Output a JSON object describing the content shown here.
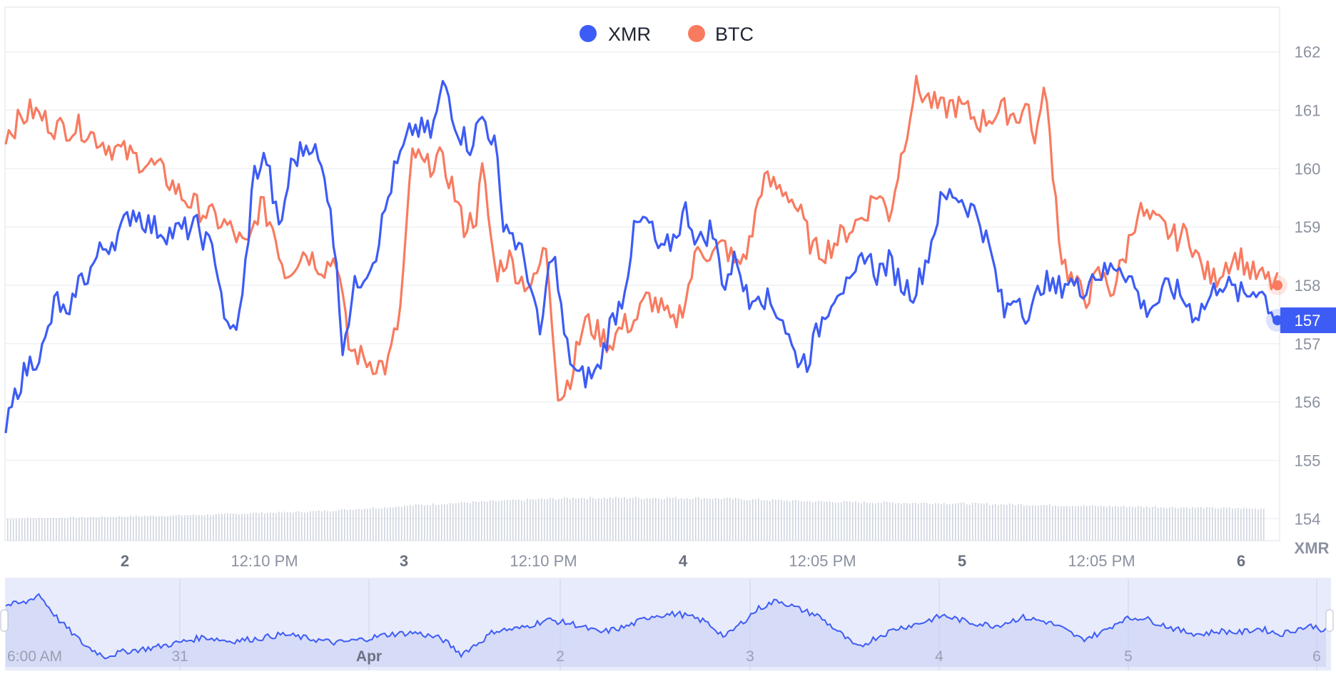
{
  "chart_data": {
    "type": "line",
    "legend": {
      "placement": "top-center"
    },
    "series": [
      {
        "name": "XMR",
        "color": "#3d5cf5"
      },
      {
        "name": "BTC",
        "color": "#f87b60"
      }
    ],
    "y_axis": {
      "side": "right",
      "range": [
        153.6,
        162.4
      ],
      "ticks": [
        "162",
        "161",
        "160",
        "159",
        "158",
        "157",
        "156",
        "155",
        "154"
      ],
      "unit_label": "XMR",
      "current_value": {
        "label": "157",
        "value": 157.4,
        "color": "#3d5cf5"
      },
      "btc_last_value": 158.0
    },
    "x_axis": {
      "ticks": [
        {
          "label": "2",
          "bold": true
        },
        {
          "label": "12:10 PM",
          "bold": false
        },
        {
          "label": "3",
          "bold": true
        },
        {
          "label": "12:10 PM",
          "bold": false
        },
        {
          "label": "4",
          "bold": true
        },
        {
          "label": "12:05 PM",
          "bold": false
        },
        {
          "label": "5",
          "bold": true
        },
        {
          "label": "12:05 PM",
          "bold": false
        },
        {
          "label": "6",
          "bold": true
        }
      ]
    },
    "xmr_anchors": [
      [
        0,
        155.5
      ],
      [
        0.01,
        156.3
      ],
      [
        0.02,
        156.7
      ],
      [
        0.03,
        156.9
      ],
      [
        0.04,
        157.8
      ],
      [
        0.05,
        157.3
      ],
      [
        0.055,
        158.0
      ],
      [
        0.065,
        158.2
      ],
      [
        0.075,
        158.6
      ],
      [
        0.09,
        158.9
      ],
      [
        0.1,
        159.3
      ],
      [
        0.115,
        159.0
      ],
      [
        0.13,
        158.9
      ],
      [
        0.15,
        159.0
      ],
      [
        0.165,
        158.5
      ],
      [
        0.175,
        157.1
      ],
      [
        0.185,
        157.5
      ],
      [
        0.195,
        159.9
      ],
      [
        0.205,
        160.2
      ],
      [
        0.215,
        158.9
      ],
      [
        0.225,
        160.1
      ],
      [
        0.24,
        160.5
      ],
      [
        0.255,
        159.5
      ],
      [
        0.265,
        157.0
      ],
      [
        0.275,
        158.0
      ],
      [
        0.29,
        158.5
      ],
      [
        0.305,
        159.9
      ],
      [
        0.32,
        160.7
      ],
      [
        0.335,
        160.6
      ],
      [
        0.345,
        161.5
      ],
      [
        0.355,
        160.7
      ],
      [
        0.365,
        160.4
      ],
      [
        0.375,
        160.9
      ],
      [
        0.385,
        160.4
      ],
      [
        0.39,
        159.2
      ],
      [
        0.4,
        158.8
      ],
      [
        0.41,
        158.3
      ],
      [
        0.42,
        157.1
      ],
      [
        0.43,
        158.7
      ],
      [
        0.44,
        157.0
      ],
      [
        0.45,
        156.4
      ],
      [
        0.465,
        156.5
      ],
      [
        0.475,
        157.3
      ],
      [
        0.485,
        157.8
      ],
      [
        0.495,
        159.0
      ],
      [
        0.505,
        159.1
      ],
      [
        0.515,
        158.5
      ],
      [
        0.525,
        158.8
      ],
      [
        0.535,
        159.3
      ],
      [
        0.545,
        158.7
      ],
      [
        0.555,
        159.0
      ],
      [
        0.565,
        158.0
      ],
      [
        0.575,
        158.5
      ],
      [
        0.585,
        157.6
      ],
      [
        0.59,
        158.0
      ],
      [
        0.6,
        157.7
      ],
      [
        0.61,
        157.5
      ],
      [
        0.62,
        156.8
      ],
      [
        0.63,
        156.7
      ],
      [
        0.645,
        157.6
      ],
      [
        0.655,
        158.0
      ],
      [
        0.665,
        157.9
      ],
      [
        0.675,
        158.6
      ],
      [
        0.685,
        158.2
      ],
      [
        0.695,
        158.4
      ],
      [
        0.705,
        158.0
      ],
      [
        0.715,
        157.9
      ],
      [
        0.725,
        158.5
      ],
      [
        0.735,
        159.4
      ],
      [
        0.745,
        159.6
      ],
      [
        0.755,
        159.4
      ],
      [
        0.765,
        159.2
      ],
      [
        0.775,
        158.5
      ],
      [
        0.785,
        157.5
      ],
      [
        0.795,
        157.9
      ],
      [
        0.805,
        157.4
      ],
      [
        0.815,
        158.1
      ],
      [
        0.825,
        157.9
      ],
      [
        0.835,
        158.1
      ],
      [
        0.845,
        157.9
      ],
      [
        0.855,
        158.2
      ],
      [
        0.865,
        158.2
      ],
      [
        0.875,
        158.4
      ],
      [
        0.885,
        158.1
      ],
      [
        0.895,
        157.6
      ],
      [
        0.905,
        157.7
      ],
      [
        0.915,
        158.0
      ],
      [
        0.925,
        157.8
      ],
      [
        0.935,
        157.5
      ],
      [
        0.945,
        157.7
      ],
      [
        0.955,
        158.1
      ],
      [
        0.965,
        157.9
      ],
      [
        0.975,
        157.8
      ],
      [
        0.985,
        158.0
      ],
      [
        0.995,
        157.6
      ],
      [
        1.0,
        157.4
      ]
    ],
    "btc_anchors": [
      [
        0,
        160.6
      ],
      [
        0.02,
        161.0
      ],
      [
        0.04,
        160.7
      ],
      [
        0.06,
        160.7
      ],
      [
        0.08,
        160.4
      ],
      [
        0.1,
        160.2
      ],
      [
        0.12,
        160.0
      ],
      [
        0.14,
        159.5
      ],
      [
        0.16,
        159.2
      ],
      [
        0.175,
        159.0
      ],
      [
        0.19,
        158.6
      ],
      [
        0.2,
        159.4
      ],
      [
        0.21,
        159.0
      ],
      [
        0.22,
        158.2
      ],
      [
        0.235,
        158.6
      ],
      [
        0.25,
        158.3
      ],
      [
        0.26,
        158.5
      ],
      [
        0.27,
        156.9
      ],
      [
        0.285,
        156.7
      ],
      [
        0.3,
        156.6
      ],
      [
        0.31,
        157.5
      ],
      [
        0.32,
        160.3
      ],
      [
        0.33,
        160.0
      ],
      [
        0.34,
        160.2
      ],
      [
        0.35,
        159.8
      ],
      [
        0.36,
        159.0
      ],
      [
        0.37,
        159.2
      ],
      [
        0.375,
        160.0
      ],
      [
        0.385,
        158.2
      ],
      [
        0.395,
        158.5
      ],
      [
        0.405,
        158.1
      ],
      [
        0.415,
        158.0
      ],
      [
        0.425,
        158.7
      ],
      [
        0.435,
        156.0
      ],
      [
        0.445,
        156.5
      ],
      [
        0.455,
        157.4
      ],
      [
        0.465,
        157.2
      ],
      [
        0.475,
        157.0
      ],
      [
        0.485,
        157.3
      ],
      [
        0.495,
        157.4
      ],
      [
        0.505,
        157.8
      ],
      [
        0.515,
        157.6
      ],
      [
        0.525,
        157.3
      ],
      [
        0.535,
        157.8
      ],
      [
        0.545,
        158.7
      ],
      [
        0.555,
        158.5
      ],
      [
        0.565,
        158.7
      ],
      [
        0.575,
        158.3
      ],
      [
        0.585,
        158.7
      ],
      [
        0.595,
        159.8
      ],
      [
        0.605,
        159.7
      ],
      [
        0.615,
        159.6
      ],
      [
        0.625,
        159.2
      ],
      [
        0.635,
        158.6
      ],
      [
        0.645,
        158.6
      ],
      [
        0.655,
        158.8
      ],
      [
        0.665,
        159.0
      ],
      [
        0.675,
        159.2
      ],
      [
        0.685,
        159.6
      ],
      [
        0.695,
        159.2
      ],
      [
        0.705,
        160.3
      ],
      [
        0.715,
        161.4
      ],
      [
        0.725,
        161.2
      ],
      [
        0.735,
        161.0
      ],
      [
        0.745,
        161.1
      ],
      [
        0.755,
        161.0
      ],
      [
        0.765,
        160.8
      ],
      [
        0.775,
        160.9
      ],
      [
        0.785,
        161.0
      ],
      [
        0.795,
        160.9
      ],
      [
        0.805,
        161.1
      ],
      [
        0.81,
        160.2
      ],
      [
        0.815,
        161.5
      ],
      [
        0.82,
        160.8
      ],
      [
        0.83,
        158.5
      ],
      [
        0.84,
        158.0
      ],
      [
        0.85,
        157.8
      ],
      [
        0.86,
        158.2
      ],
      [
        0.87,
        157.9
      ],
      [
        0.88,
        158.5
      ],
      [
        0.89,
        159.3
      ],
      [
        0.9,
        159.1
      ],
      [
        0.91,
        159.0
      ],
      [
        0.92,
        158.8
      ],
      [
        0.93,
        158.9
      ],
      [
        0.94,
        158.3
      ],
      [
        0.95,
        158.1
      ],
      [
        0.96,
        158.4
      ],
      [
        0.97,
        158.5
      ],
      [
        0.98,
        158.2
      ],
      [
        0.99,
        158.1
      ],
      [
        1.0,
        158.0
      ]
    ],
    "volume_shape": [
      [
        0,
        0.28
      ],
      [
        0.15,
        0.33
      ],
      [
        0.25,
        0.38
      ],
      [
        0.35,
        0.48
      ],
      [
        0.45,
        0.55
      ],
      [
        0.55,
        0.55
      ],
      [
        0.65,
        0.5
      ],
      [
        0.75,
        0.48
      ],
      [
        0.85,
        0.45
      ],
      [
        1.0,
        0.41
      ]
    ],
    "navigator": {
      "ticks": [
        "6:00 AM",
        "31",
        "Apr",
        "2",
        "3",
        "4",
        "5",
        "6"
      ],
      "bold_ticks": [
        "Apr"
      ],
      "anchors": [
        [
          0,
          0.72
        ],
        [
          0.015,
          0.75
        ],
        [
          0.025,
          0.85
        ],
        [
          0.04,
          0.55
        ],
        [
          0.06,
          0.25
        ],
        [
          0.075,
          0.12
        ],
        [
          0.09,
          0.18
        ],
        [
          0.11,
          0.22
        ],
        [
          0.13,
          0.28
        ],
        [
          0.15,
          0.35
        ],
        [
          0.17,
          0.3
        ],
        [
          0.19,
          0.33
        ],
        [
          0.21,
          0.38
        ],
        [
          0.23,
          0.33
        ],
        [
          0.25,
          0.28
        ],
        [
          0.27,
          0.32
        ],
        [
          0.29,
          0.38
        ],
        [
          0.31,
          0.4
        ],
        [
          0.33,
          0.33
        ],
        [
          0.345,
          0.15
        ],
        [
          0.36,
          0.3
        ],
        [
          0.37,
          0.42
        ],
        [
          0.39,
          0.45
        ],
        [
          0.41,
          0.55
        ],
        [
          0.43,
          0.5
        ],
        [
          0.45,
          0.4
        ],
        [
          0.47,
          0.47
        ],
        [
          0.49,
          0.6
        ],
        [
          0.51,
          0.62
        ],
        [
          0.53,
          0.53
        ],
        [
          0.545,
          0.35
        ],
        [
          0.56,
          0.55
        ],
        [
          0.57,
          0.68
        ],
        [
          0.585,
          0.78
        ],
        [
          0.6,
          0.68
        ],
        [
          0.615,
          0.6
        ],
        [
          0.63,
          0.42
        ],
        [
          0.645,
          0.22
        ],
        [
          0.66,
          0.35
        ],
        [
          0.675,
          0.45
        ],
        [
          0.69,
          0.5
        ],
        [
          0.71,
          0.6
        ],
        [
          0.73,
          0.52
        ],
        [
          0.75,
          0.48
        ],
        [
          0.77,
          0.58
        ],
        [
          0.79,
          0.52
        ],
        [
          0.8,
          0.45
        ],
        [
          0.815,
          0.32
        ],
        [
          0.83,
          0.4
        ],
        [
          0.845,
          0.55
        ],
        [
          0.86,
          0.58
        ],
        [
          0.875,
          0.5
        ],
        [
          0.89,
          0.42
        ],
        [
          0.905,
          0.38
        ],
        [
          0.92,
          0.42
        ],
        [
          0.935,
          0.4
        ],
        [
          0.95,
          0.45
        ],
        [
          0.965,
          0.38
        ],
        [
          0.98,
          0.45
        ],
        [
          0.99,
          0.48
        ],
        [
          1.0,
          0.42
        ]
      ]
    }
  }
}
